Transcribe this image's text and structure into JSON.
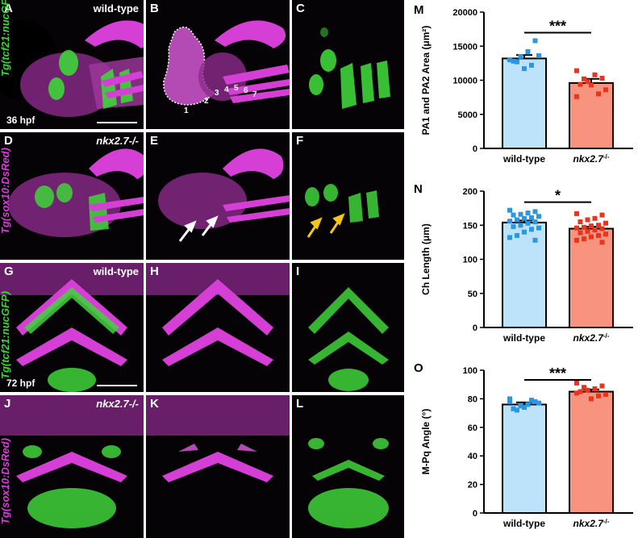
{
  "figure": {
    "colors": {
      "magenta": "#d63fd6",
      "green": "#3fd43a",
      "background": "#050305",
      "wildtype_bar": "#bde3fa",
      "wildtype_points": "#2a97e0",
      "mutant_bar": "#f8937f",
      "mutant_points": "#e8351c"
    },
    "panels": [
      {
        "id": "A",
        "label": "A",
        "genotype": "wild-type",
        "stage": "36 hpf"
      },
      {
        "id": "B",
        "label": "B",
        "arch_numbers": [
          "1",
          "2",
          "3",
          "4",
          "5",
          "6",
          "7"
        ]
      },
      {
        "id": "C",
        "label": "C"
      },
      {
        "id": "D",
        "label": "D",
        "genotype": "nkx2.7-/-"
      },
      {
        "id": "E",
        "label": "E"
      },
      {
        "id": "F",
        "label": "F"
      },
      {
        "id": "G",
        "label": "G",
        "genotype": "wild-type",
        "stage": "72 hpf"
      },
      {
        "id": "H",
        "label": "H"
      },
      {
        "id": "I",
        "label": "I"
      },
      {
        "id": "J",
        "label": "J",
        "genotype": "nkx2.7-/-"
      },
      {
        "id": "K",
        "label": "K"
      },
      {
        "id": "L",
        "label": "L"
      }
    ],
    "side_labels": {
      "top_green": "Tg(tcf21:nucGFP)",
      "top_magenta": "Tg(sox10:DsRed)",
      "bottom_green": "Tg(tcf21:nucGFP)",
      "bottom_magenta": "Tg(sox10:DsRed)"
    }
  },
  "chart_data": [
    {
      "id": "M",
      "label": "M",
      "type": "bar",
      "categories": [
        "wild-type",
        "nkx2.7-/-"
      ],
      "ylabel": "PA1 and PA2 Area (μm²)",
      "ylim": [
        0,
        20000
      ],
      "yticks": [
        "0",
        "5000",
        "10000",
        "15000",
        "20000"
      ],
      "tick_values": [
        0,
        5000,
        10000,
        15000,
        20000
      ],
      "values": [
        13200,
        9600
      ],
      "errors": [
        500,
        600
      ],
      "significance": "***",
      "points": [
        [
          13000,
          15800,
          14200,
          13500,
          12800,
          13600,
          12200,
          11700,
          12700
        ],
        [
          11400,
          10300,
          10800,
          9800,
          9400,
          8600,
          8000,
          9300,
          10200,
          7600
        ]
      ]
    },
    {
      "id": "N",
      "label": "N",
      "type": "bar",
      "categories": [
        "wild-type",
        "nkx2.7-/-"
      ],
      "ylabel": "Ch Length (μm)",
      "ylim": [
        0,
        200
      ],
      "yticks": [
        "0",
        "50",
        "100",
        "150",
        "200"
      ],
      "tick_values": [
        0,
        50,
        100,
        150,
        200
      ],
      "values": [
        154,
        145
      ],
      "errors": [
        3,
        3
      ],
      "significance": "*",
      "points": [
        [
          172,
          170,
          168,
          166,
          165,
          163,
          161,
          160,
          158,
          156,
          155,
          153,
          150,
          148,
          146,
          144,
          140,
          135,
          132,
          128
        ],
        [
          167,
          165,
          160,
          158,
          155,
          153,
          150,
          149,
          147,
          146,
          145,
          143,
          141,
          139,
          137,
          135,
          133,
          130,
          128,
          125
        ]
      ]
    },
    {
      "id": "O",
      "label": "O",
      "type": "bar",
      "categories": [
        "wild-type",
        "nkx2.7-/-"
      ],
      "ylabel": "M-Pq Angle (°)",
      "ylim": [
        0,
        100
      ],
      "yticks": [
        "0",
        "20",
        "40",
        "60",
        "80",
        "100"
      ],
      "tick_values": [
        0,
        20,
        40,
        60,
        80,
        100
      ],
      "values": [
        76,
        85
      ],
      "errors": [
        1.5,
        1.5
      ],
      "significance": "***",
      "points": [
        [
          80,
          78,
          76,
          75,
          73,
          77,
          79,
          74,
          72,
          78
        ],
        [
          91,
          89,
          87,
          86,
          85,
          83,
          82,
          80,
          88,
          84
        ]
      ]
    }
  ]
}
